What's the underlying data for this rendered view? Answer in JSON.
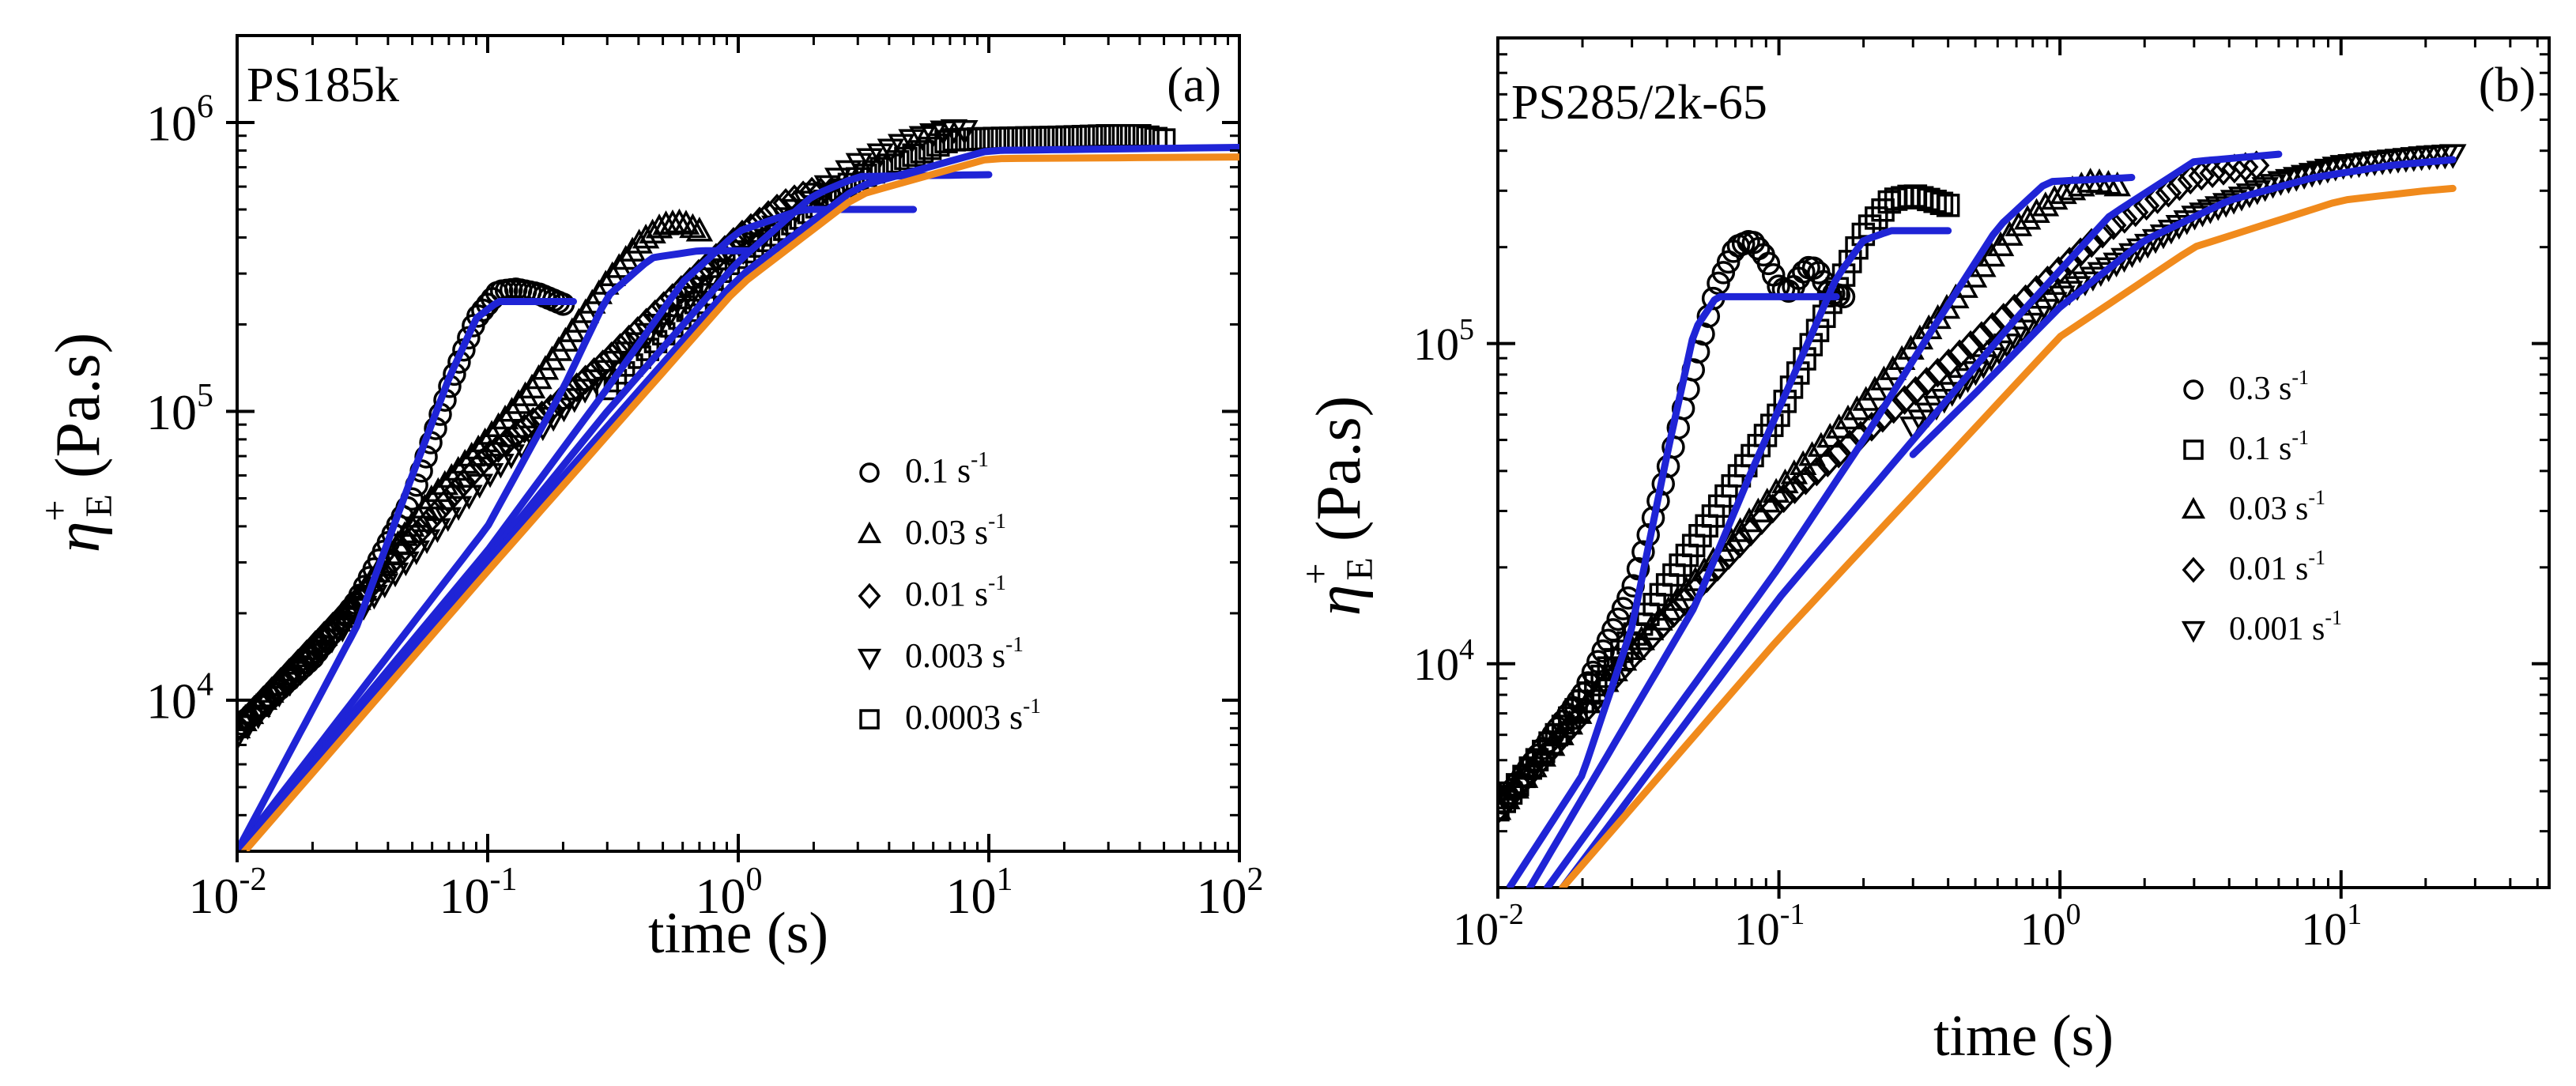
{
  "colors": {
    "data_markers": "#000000",
    "model_blue": "#1f24d6",
    "model_orange": "#f08a1c"
  },
  "chart_data": [
    {
      "panel_id": "a",
      "type": "scatter",
      "title": "PS185k",
      "panel_label": "(a)",
      "xlabel": "time (s)",
      "ylabel_main": "η",
      "ylabel_sup": "+",
      "ylabel_sub": "E",
      "ylabel_unit": " (Pa.s)",
      "xscale": "log",
      "yscale": "log",
      "xlim": [
        0.01,
        100
      ],
      "ylim": [
        3000,
        2000000
      ],
      "x_ticks": [
        {
          "value": 0.01,
          "base": "10",
          "exp": "-2"
        },
        {
          "value": 0.1,
          "base": "10",
          "exp": "-1"
        },
        {
          "value": 1,
          "base": "10",
          "exp": "0"
        },
        {
          "value": 10,
          "base": "10",
          "exp": "1"
        },
        {
          "value": 100,
          "base": "10",
          "exp": "2"
        }
      ],
      "y_ticks": [
        {
          "value": 10000,
          "base": "10",
          "exp": "4"
        },
        {
          "value": 100000,
          "base": "10",
          "exp": "5"
        },
        {
          "value": 1000000,
          "base": "10",
          "exp": "6"
        }
      ],
      "legend_position": "center-right",
      "legend": [
        {
          "marker": "circle",
          "label": "0.1 s",
          "unit_exp": "-1"
        },
        {
          "marker": "triangle-up",
          "label": "0.03 s",
          "unit_exp": "-1"
        },
        {
          "marker": "diamond",
          "label": "0.01 s",
          "unit_exp": "-1"
        },
        {
          "marker": "triangle-down",
          "label": "0.003 s",
          "unit_exp": "-1"
        },
        {
          "marker": "square",
          "label": "0.0003 s",
          "unit_exp": "-1"
        }
      ],
      "series": [
        {
          "name": "0.1 s-1",
          "marker": "circle",
          "x": [
            0.01,
            0.02,
            0.03,
            0.05,
            0.07,
            0.09,
            0.11,
            0.13,
            0.16,
            0.2
          ],
          "y": [
            8000,
            14000,
            22000,
            50000,
            120000,
            210000,
            260000,
            265000,
            255000,
            235000
          ]
        },
        {
          "name": "0.03 s-1",
          "marker": "triangle-up",
          "x": [
            0.01,
            0.03,
            0.06,
            0.1,
            0.15,
            0.2,
            0.3,
            0.4,
            0.5,
            0.6,
            0.7
          ],
          "y": [
            8000,
            22000,
            50000,
            80000,
            120000,
            170000,
            280000,
            380000,
            440000,
            450000,
            420000
          ]
        },
        {
          "name": "0.01 s-1",
          "marker": "diamond",
          "x": [
            0.01,
            0.03,
            0.1,
            0.2,
            0.3,
            0.5,
            1,
            1.5,
            2,
            2.5
          ],
          "y": [
            8000,
            22000,
            70000,
            110000,
            150000,
            230000,
            400000,
            520000,
            580000,
            560000
          ]
        },
        {
          "name": "0.003 s-1",
          "marker": "triangle-down",
          "x": [
            0.01,
            0.03,
            0.1,
            0.3,
            1,
            2,
            3,
            5,
            7,
            8
          ],
          "y": [
            7500,
            20000,
            60000,
            140000,
            350000,
            560000,
            720000,
            880000,
            950000,
            940000
          ]
        },
        {
          "name": "0.0003 s-1",
          "marker": "square",
          "x": [
            0.3,
            1,
            3,
            7,
            10,
            20,
            30,
            40,
            50
          ],
          "y": [
            120000,
            330000,
            640000,
            870000,
            880000,
            890000,
            900000,
            900000,
            870000
          ]
        }
      ],
      "model_lines": [
        {
          "color": "blue",
          "x": [
            0.01,
            0.03,
            0.05,
            0.07,
            0.09,
            0.11,
            0.15,
            0.22
          ],
          "y": [
            3000,
            18000,
            60000,
            130000,
            210000,
            240000,
            240000,
            240000
          ]
        },
        {
          "color": "blue",
          "x": [
            0.01,
            0.1,
            0.2,
            0.3,
            0.45,
            0.7,
            1.1
          ],
          "y": [
            3000,
            40000,
            120000,
            250000,
            340000,
            360000,
            360000
          ]
        },
        {
          "color": "blue",
          "x": [
            0.01,
            0.1,
            0.3,
            0.6,
            1,
            1.8,
            5
          ],
          "y": [
            3000,
            33000,
            120000,
            280000,
            420000,
            500000,
            500000
          ]
        },
        {
          "color": "blue",
          "x": [
            0.01,
            0.1,
            0.3,
            1,
            2,
            3,
            10
          ],
          "y": [
            3000,
            31000,
            100000,
            330000,
            560000,
            650000,
            660000
          ]
        },
        {
          "color": "blue",
          "x": [
            0.01,
            0.1,
            1,
            3,
            10,
            100
          ],
          "y": [
            3000,
            30000,
            290000,
            600000,
            800000,
            820000
          ]
        },
        {
          "color": "orange",
          "x": [
            0.01,
            0.1,
            1,
            3,
            10,
            100
          ],
          "y": [
            2800,
            28000,
            270000,
            560000,
            750000,
            760000
          ]
        }
      ]
    },
    {
      "panel_id": "b",
      "type": "scatter",
      "title": "PS285/2k-65",
      "panel_label": "(b)",
      "xlabel": "time (s)",
      "ylabel_main": "η",
      "ylabel_sup": "+",
      "ylabel_sub": "E",
      "ylabel_unit": " (Pa.s)",
      "xscale": "log",
      "yscale": "log",
      "xlim": [
        0.01,
        55
      ],
      "ylim": [
        2000,
        900000
      ],
      "x_ticks": [
        {
          "value": 0.01,
          "base": "10",
          "exp": "-2"
        },
        {
          "value": 0.1,
          "base": "10",
          "exp": "-1"
        },
        {
          "value": 1,
          "base": "10",
          "exp": "0"
        },
        {
          "value": 10,
          "base": "10",
          "exp": "1"
        }
      ],
      "y_ticks": [
        {
          "value": 10000,
          "base": "10",
          "exp": "4"
        },
        {
          "value": 100000,
          "base": "10",
          "exp": "5"
        }
      ],
      "legend_position": "center-right",
      "legend": [
        {
          "marker": "circle",
          "label": "0.3 s",
          "unit_exp": "-1"
        },
        {
          "marker": "square",
          "label": "0.1 s",
          "unit_exp": "-1"
        },
        {
          "marker": "triangle-up",
          "label": "0.03 s",
          "unit_exp": "-1"
        },
        {
          "marker": "diamond",
          "label": "0.01 s",
          "unit_exp": "-1"
        },
        {
          "marker": "triangle-down",
          "label": "0.001 s",
          "unit_exp": "-1"
        }
      ],
      "series": [
        {
          "name": "0.3 s-1",
          "marker": "circle",
          "x": [
            0.01,
            0.02,
            0.03,
            0.04,
            0.05,
            0.06,
            0.07,
            0.08,
            0.09,
            0.1,
            0.11,
            0.12,
            0.13,
            0.14,
            0.15,
            0.17
          ],
          "y": [
            3500,
            8000,
            17000,
            40000,
            85000,
            150000,
            200000,
            210000,
            185000,
            150000,
            145000,
            165000,
            175000,
            165000,
            145000,
            140000
          ]
        },
        {
          "name": "0.1 s-1",
          "marker": "square",
          "x": [
            0.01,
            0.03,
            0.06,
            0.1,
            0.15,
            0.2,
            0.25,
            0.3,
            0.35,
            0.4
          ],
          "y": [
            3500,
            12000,
            30000,
            60000,
            130000,
            220000,
            280000,
            290000,
            280000,
            270000
          ]
        },
        {
          "name": "0.03 s-1",
          "marker": "triangle-up",
          "x": [
            0.01,
            0.03,
            0.1,
            0.2,
            0.4,
            0.7,
            1,
            1.3,
            1.6
          ],
          "y": [
            3500,
            11000,
            35000,
            65000,
            130000,
            230000,
            290000,
            320000,
            310000
          ]
        },
        {
          "name": "0.01 s-1",
          "marker": "diamond",
          "x": [
            0.01,
            0.03,
            0.1,
            0.3,
            0.7,
            1.5,
            3,
            4,
            5
          ],
          "y": [
            3500,
            10500,
            32000,
            70000,
            130000,
            230000,
            330000,
            350000,
            360000
          ]
        },
        {
          "name": "0.001 s-1",
          "marker": "triangle-down",
          "x": [
            0.3,
            1,
            3,
            6,
            10,
            15,
            20,
            25
          ],
          "y": [
            55000,
            140000,
            250000,
            320000,
            360000,
            375000,
            385000,
            390000
          ]
        }
      ],
      "model_lines": [
        {
          "color": "blue",
          "x": [
            0.011,
            0.02,
            0.03,
            0.04,
            0.05,
            0.06,
            0.08,
            0.16
          ],
          "y": [
            2000,
            4500,
            13000,
            45000,
            110000,
            140000,
            140000,
            140000
          ]
        },
        {
          "color": "blue",
          "x": [
            0.013,
            0.05,
            0.08,
            0.12,
            0.16,
            0.2,
            0.25,
            0.4
          ],
          "y": [
            2000,
            15000,
            40000,
            90000,
            160000,
            210000,
            225000,
            225000
          ]
        },
        {
          "color": "blue",
          "x": [
            0.015,
            0.1,
            0.2,
            0.35,
            0.6,
            0.9,
            1.8
          ],
          "y": [
            2000,
            20000,
            50000,
            110000,
            230000,
            320000,
            330000
          ]
        },
        {
          "color": "blue",
          "x": [
            0.017,
            0.1,
            0.3,
            0.7,
            1.5,
            3,
            6
          ],
          "y": [
            2000,
            16000,
            50000,
            120000,
            250000,
            370000,
            390000
          ]
        },
        {
          "color": "blue",
          "x": [
            0.3,
            0.5,
            1,
            2,
            4,
            8,
            15,
            25
          ],
          "y": [
            45000,
            70000,
            130000,
            210000,
            280000,
            330000,
            360000,
            375000
          ]
        },
        {
          "color": "orange",
          "x": [
            0.017,
            0.1,
            1,
            3,
            10,
            20,
            25
          ],
          "y": [
            2000,
            12000,
            105000,
            200000,
            280000,
            300000,
            305000
          ]
        }
      ]
    }
  ]
}
